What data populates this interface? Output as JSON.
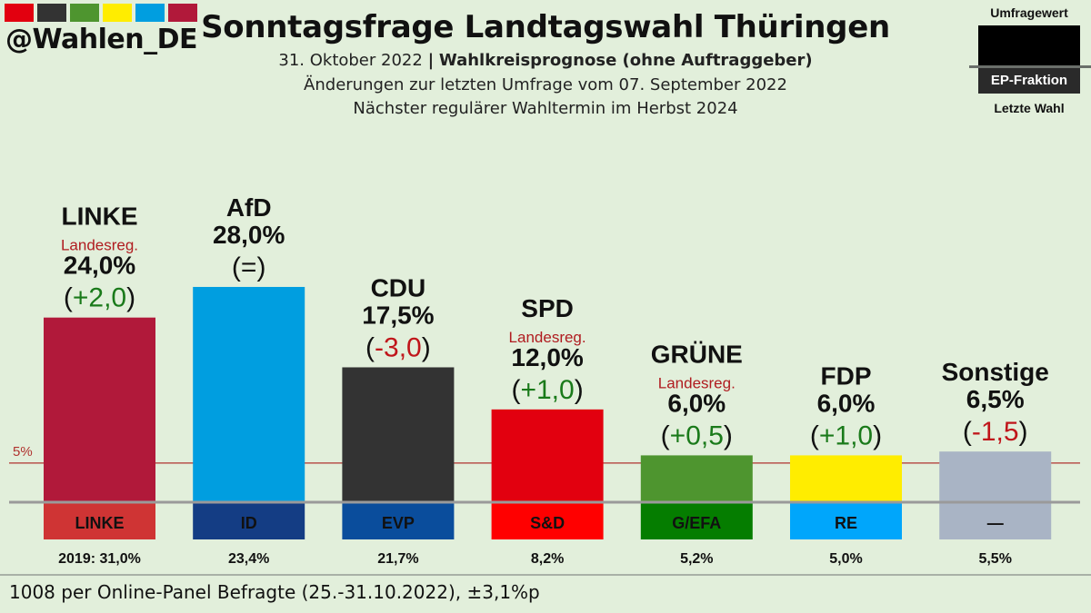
{
  "header": {
    "handle": "@Wahlen_DE",
    "swatch_colors": [
      "#e2000f",
      "#333333",
      "#4e952f",
      "#ffed00",
      "#009ee0",
      "#b1193a"
    ],
    "title": "Sonntagsfrage Landtagswahl Thüringen",
    "date": "31. Oktober 2022",
    "separator": "|",
    "method": "Wahlkreisprognose (ohne Auftraggeber)",
    "changes_note": "Änderungen zur letzten Umfrage vom 07. September 2022",
    "next_election": "Nächster regulärer Wahltermin im Herbst 2024"
  },
  "legend": {
    "top_label": "Umfragewert",
    "middle_label": "EP-Fraktion",
    "bottom_label": "Letzte Wahl"
  },
  "chart_data": {
    "type": "bar",
    "title": "Sonntagsfrage Landtagswahl Thüringen",
    "xlabel": "",
    "ylabel": "",
    "ylim": [
      0,
      28
    ],
    "threshold": {
      "label": "5%",
      "value": 5
    },
    "categories": [
      "LINKE",
      "AfD",
      "CDU",
      "SPD",
      "GRÜNE",
      "FDP",
      "Sonstige"
    ],
    "values": [
      24.0,
      28.0,
      17.5,
      12.0,
      6.0,
      6.0,
      6.5
    ],
    "series": [
      {
        "name": "Umfragewert",
        "values": [
          24.0,
          28.0,
          17.5,
          12.0,
          6.0,
          6.0,
          6.5
        ]
      },
      {
        "name": "Letzte Wahl 2019",
        "values": [
          31.0,
          23.4,
          21.7,
          8.2,
          5.2,
          5.0,
          5.5
        ]
      }
    ],
    "parties": [
      {
        "name": "LINKE",
        "note": "Landesreg.",
        "value_label": "24,0%",
        "change": "+2,0",
        "change_dir": "up",
        "bar_color": "#b1193a",
        "ep_group": "LINKE",
        "ep_color": "#cf3434",
        "last_label": "2019: 31,0%"
      },
      {
        "name": "AfD",
        "note": "",
        "value_label": "28,0%",
        "change": "=",
        "change_dir": "same",
        "bar_color": "#009ee0",
        "ep_group": "ID",
        "ep_color": "#143d84",
        "last_label": "23,4%"
      },
      {
        "name": "CDU",
        "note": "",
        "value_label": "17,5%",
        "change": "-3,0",
        "change_dir": "down",
        "bar_color": "#333333",
        "ep_group": "EVP",
        "ep_color": "#0a4d9c",
        "last_label": "21,7%"
      },
      {
        "name": "SPD",
        "note": "Landesreg.",
        "value_label": "12,0%",
        "change": "+1,0",
        "change_dir": "up",
        "bar_color": "#e2000f",
        "ep_group": "S&D",
        "ep_color": "#ff0000",
        "last_label": "8,2%"
      },
      {
        "name": "GRÜNE",
        "note": "Landesreg.",
        "value_label": "6,0%",
        "change": "+0,5",
        "change_dir": "up",
        "bar_color": "#4e952f",
        "ep_group": "G/EFA",
        "ep_color": "#057d00",
        "last_label": "5,2%"
      },
      {
        "name": "FDP",
        "note": "",
        "value_label": "6,0%",
        "change": "+1,0",
        "change_dir": "up",
        "bar_color": "#ffed00",
        "ep_group": "RE",
        "ep_color": "#00a6fb",
        "last_label": "5,0%"
      },
      {
        "name": "Sonstige",
        "note": "",
        "value_label": "6,5%",
        "change": "-1,5",
        "change_dir": "down",
        "bar_color": "#a9b4c5",
        "ep_group": "—",
        "ep_color": "#a9b4c5",
        "last_label": "5,5%"
      }
    ],
    "colors": {
      "up": "#1a7a1a",
      "down": "#c0151a",
      "note": "#b01c20",
      "threshold": "#b0332f",
      "baseline": "#9a9a9a"
    }
  },
  "footer": {
    "sample_note": "1008 per Online-Panel Befragte (25.-31.10.2022), ±3,1%p"
  }
}
